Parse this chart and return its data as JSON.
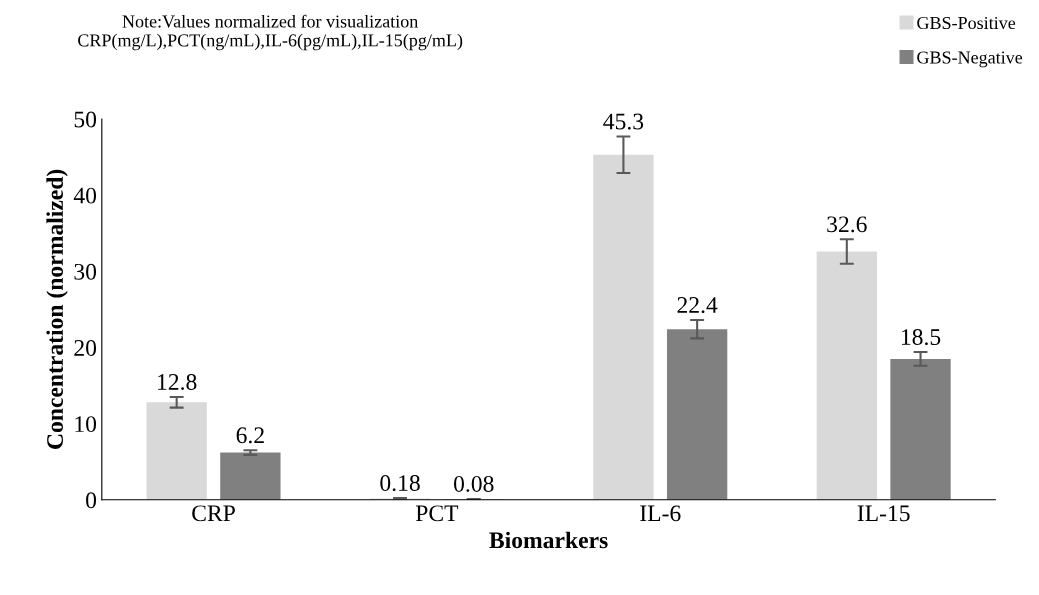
{
  "chart_data": {
    "type": "bar",
    "xlabel": "Biomarkers",
    "ylabel": "Concentration (normalized)",
    "annotations": [
      "Note:Values normalized for visualization\nCRP(mg/L),PCT(ng/mL),IL-6(pg/mL),IL-15(pg/mL)"
    ],
    "categories": [
      "CRP",
      "PCT",
      "IL-6",
      "IL-15"
    ],
    "series": [
      {
        "name": "GBS-Positive",
        "color": "#d9d9d9",
        "values": [
          12.8,
          0.18,
          45.3,
          32.6
        ],
        "errors": [
          0.7,
          0.05,
          2.4,
          1.6
        ]
      },
      {
        "name": "GBS-Negative",
        "color": "#808080",
        "values": [
          6.2,
          0.08,
          22.4,
          18.5
        ],
        "errors": [
          0.3,
          0.03,
          1.2,
          0.9
        ]
      }
    ],
    "ylim": [
      0,
      50
    ],
    "yticks": [
      0,
      10,
      20,
      30,
      40,
      50
    ],
    "grid": false,
    "legend": "top right",
    "data_labels": true
  }
}
